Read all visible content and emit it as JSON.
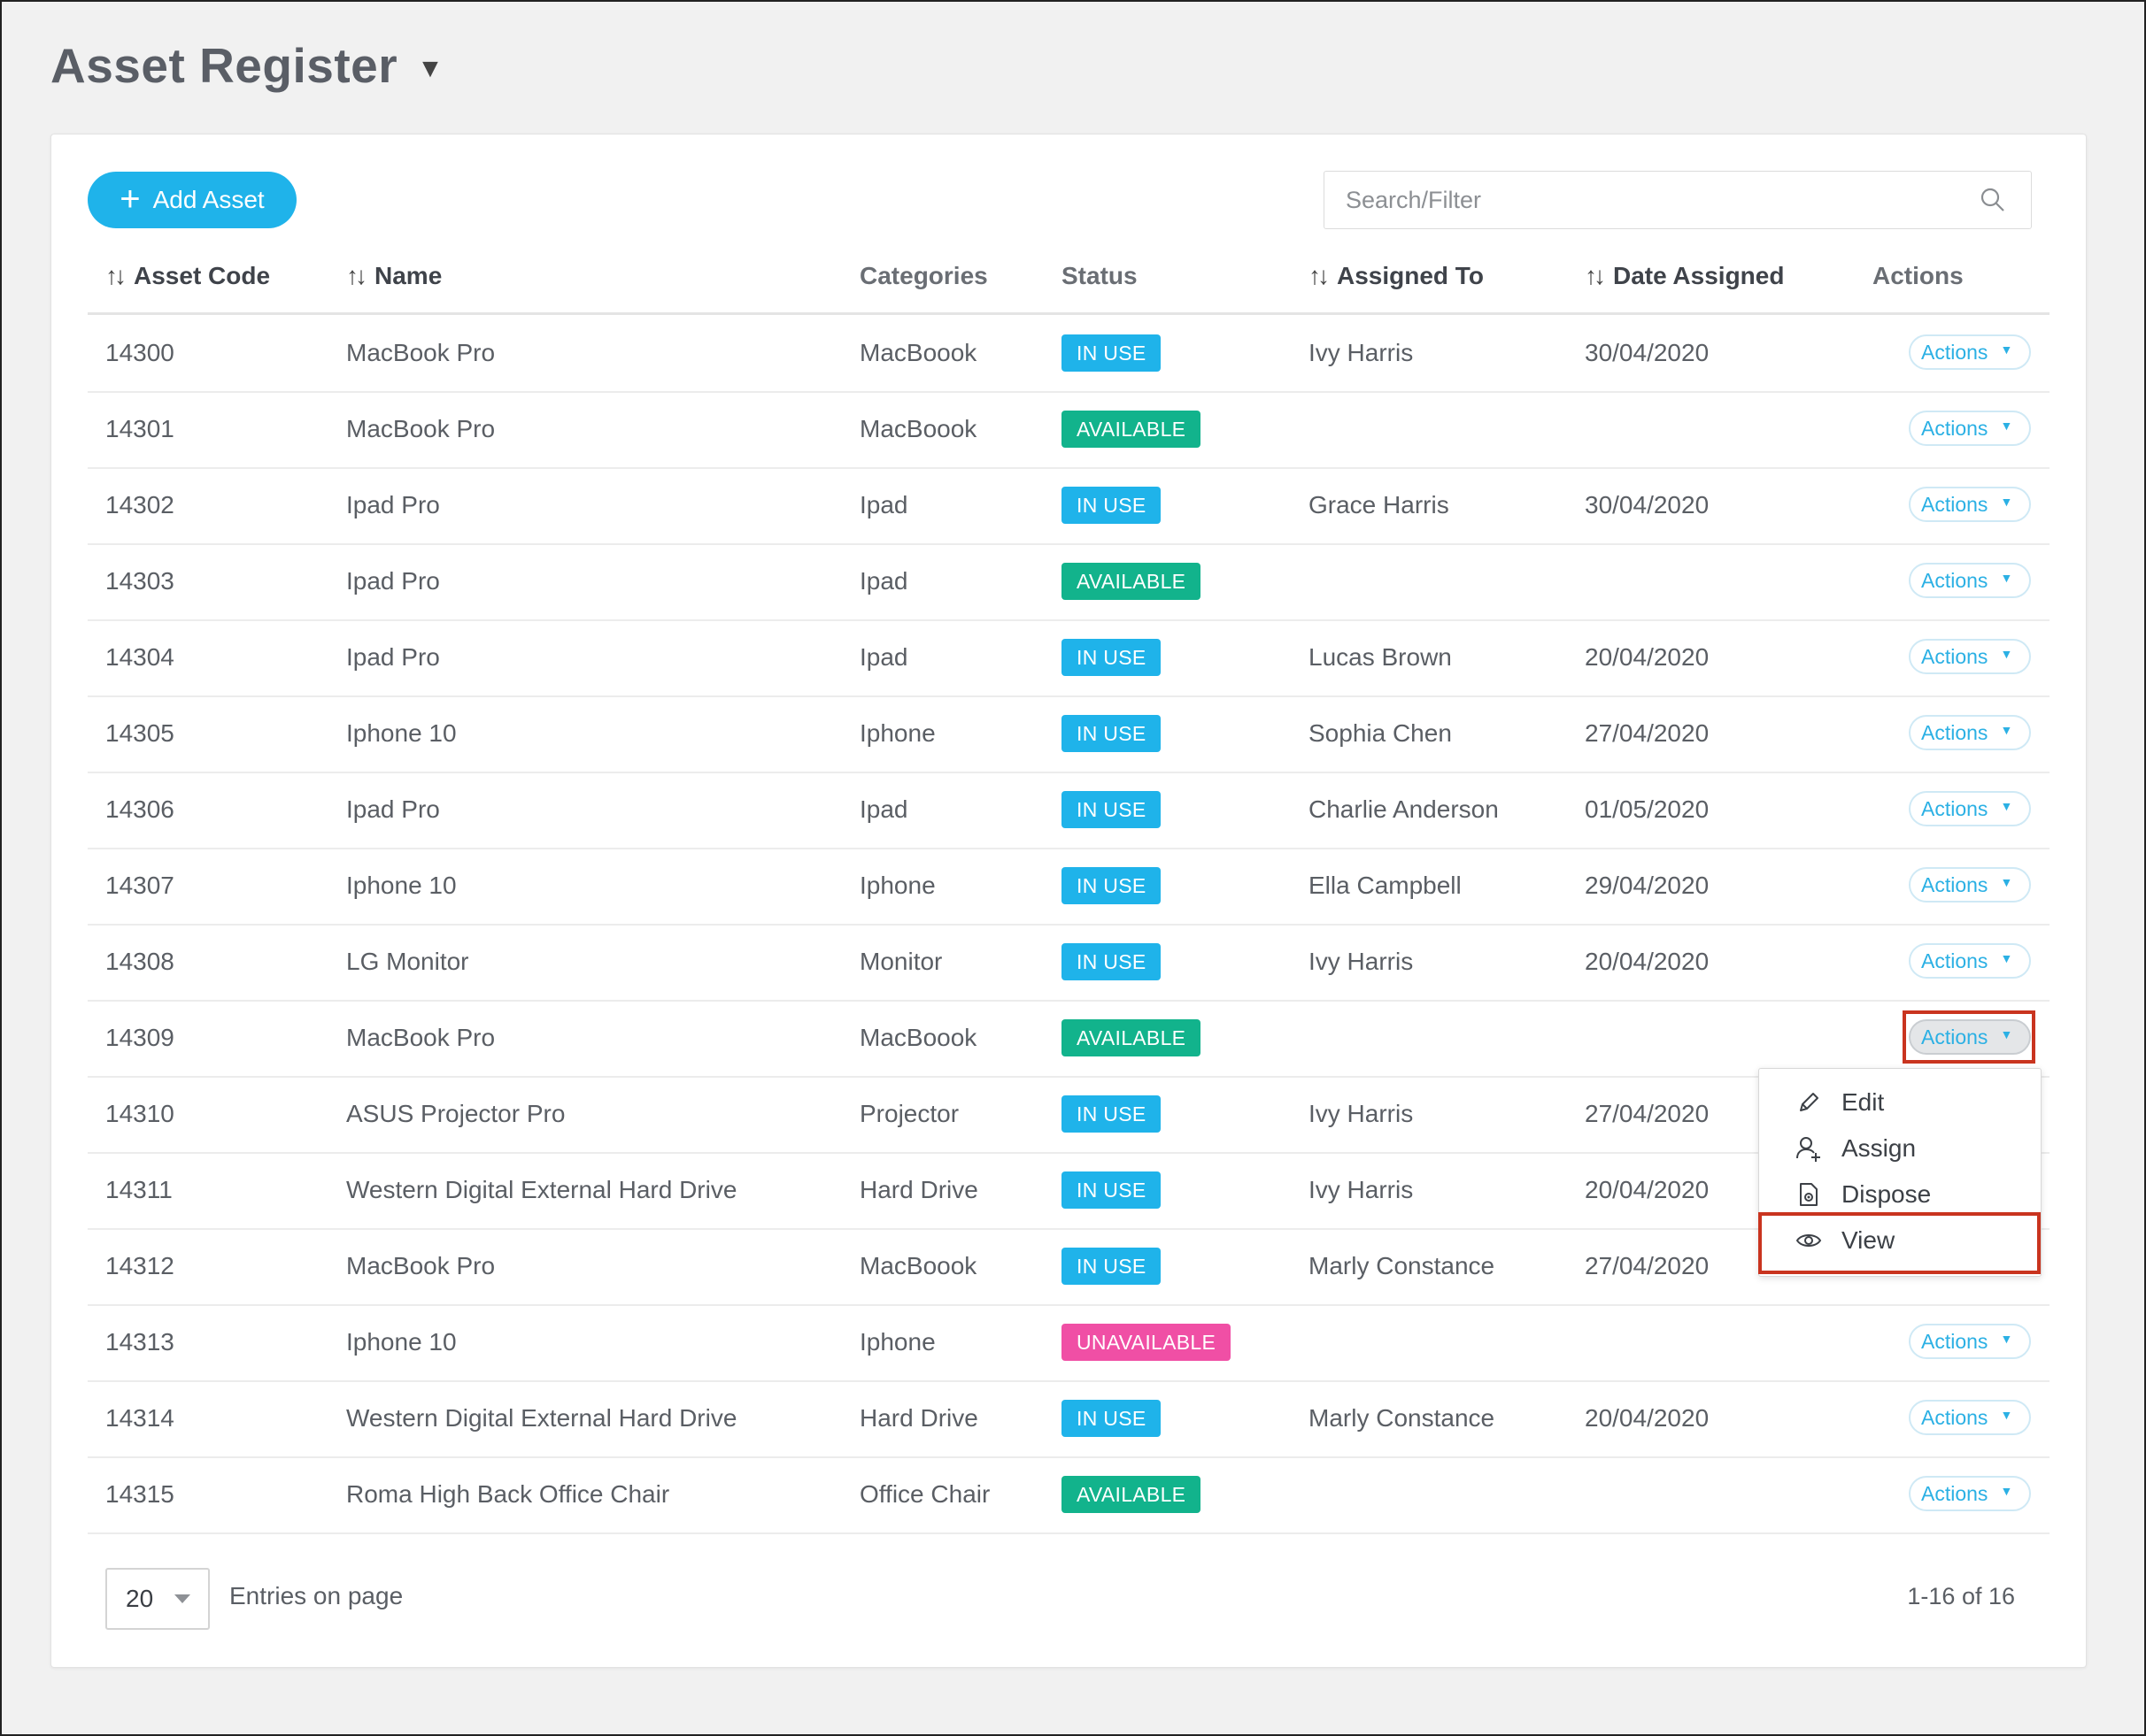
{
  "page": {
    "title": "Asset Register"
  },
  "toolbar": {
    "add_label": "Add Asset",
    "search_placeholder": "Search/Filter"
  },
  "columns": {
    "asset_code": "Asset Code",
    "name": "Name",
    "categories": "Categories",
    "status": "Status",
    "assigned_to": "Assigned To",
    "date_assigned": "Date Assigned",
    "actions": "Actions"
  },
  "status_colors": {
    "IN USE": "#1fb3ea",
    "AVAILABLE": "#12b38c",
    "UNAVAILABLE": "#f04fa5"
  },
  "rows": [
    {
      "code": "14300",
      "name": "MacBook Pro",
      "category": "MacBoook",
      "status": "IN USE",
      "assigned": "Ivy Harris",
      "date": "30/04/2020",
      "action": "Actions"
    },
    {
      "code": "14301",
      "name": "MacBook Pro",
      "category": "MacBoook",
      "status": "AVAILABLE",
      "assigned": "",
      "date": "",
      "action": "Actions"
    },
    {
      "code": "14302",
      "name": "Ipad Pro",
      "category": "Ipad",
      "status": "IN USE",
      "assigned": "Grace Harris",
      "date": "30/04/2020",
      "action": "Actions"
    },
    {
      "code": "14303",
      "name": "Ipad Pro",
      "category": "Ipad",
      "status": "AVAILABLE",
      "assigned": "",
      "date": "",
      "action": "Actions"
    },
    {
      "code": "14304",
      "name": "Ipad Pro",
      "category": "Ipad",
      "status": "IN USE",
      "assigned": "Lucas Brown",
      "date": "20/04/2020",
      "action": "Actions"
    },
    {
      "code": "14305",
      "name": "Iphone 10",
      "category": "Iphone",
      "status": "IN USE",
      "assigned": "Sophia Chen",
      "date": "27/04/2020",
      "action": "Actions"
    },
    {
      "code": "14306",
      "name": "Ipad Pro",
      "category": "Ipad",
      "status": "IN USE",
      "assigned": "Charlie Anderson",
      "date": "01/05/2020",
      "action": "Actions"
    },
    {
      "code": "14307",
      "name": "Iphone 10",
      "category": "Iphone",
      "status": "IN USE",
      "assigned": "Ella Campbell",
      "date": "29/04/2020",
      "action": "Actions"
    },
    {
      "code": "14308",
      "name": "LG Monitor",
      "category": "Monitor",
      "status": "IN USE",
      "assigned": "Ivy Harris",
      "date": "20/04/2020",
      "action": "Actions"
    },
    {
      "code": "14309",
      "name": "MacBook Pro",
      "category": "MacBoook",
      "status": "AVAILABLE",
      "assigned": "",
      "date": "",
      "action": "Actions"
    },
    {
      "code": "14310",
      "name": "ASUS Projector Pro",
      "category": "Projector",
      "status": "IN USE",
      "assigned": "Ivy Harris",
      "date": "27/04/2020",
      "action": ""
    },
    {
      "code": "14311",
      "name": "Western Digital External Hard Drive",
      "category": "Hard Drive",
      "status": "IN USE",
      "assigned": "Ivy Harris",
      "date": "20/04/2020",
      "action": ""
    },
    {
      "code": "14312",
      "name": "MacBook Pro",
      "category": "MacBoook",
      "status": "IN USE",
      "assigned": "Marly Constance",
      "date": "27/04/2020",
      "action": ""
    },
    {
      "code": "14313",
      "name": "Iphone 10",
      "category": "Iphone",
      "status": "UNAVAILABLE",
      "assigned": "",
      "date": "",
      "action": "Actions"
    },
    {
      "code": "14314",
      "name": "Western Digital External Hard Drive",
      "category": "Hard Drive",
      "status": "IN USE",
      "assigned": "Marly Constance",
      "date": "20/04/2020",
      "action": "Actions"
    },
    {
      "code": "14315",
      "name": "Roma High Back Office Chair",
      "category": "Office Chair",
      "status": "AVAILABLE",
      "assigned": "",
      "date": "",
      "action": "Actions"
    }
  ],
  "active_row": 9,
  "menu": {
    "items": [
      {
        "label": "Edit",
        "icon": "pencil-icon"
      },
      {
        "label": "Assign",
        "icon": "assign-user-icon"
      },
      {
        "label": "Dispose",
        "icon": "dispose-file-icon"
      },
      {
        "label": "View",
        "icon": "eye-icon"
      }
    ]
  },
  "pagination": {
    "page_size": "20",
    "entries_label": "Entries on page",
    "info": "1-16 of 16"
  }
}
